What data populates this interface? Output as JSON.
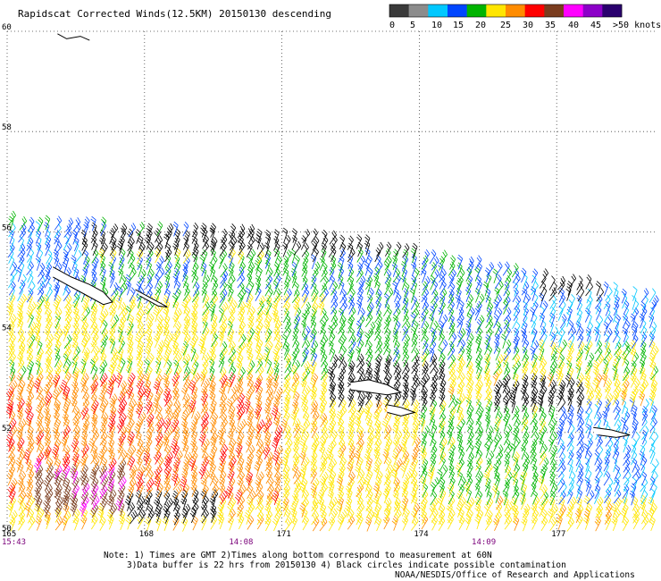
{
  "header": {
    "title": "Rapidscat Corrected Winds(12.5KM) 20150130 descending"
  },
  "legend": {
    "bins": [
      {
        "label": "0",
        "color": "#3a3a3a"
      },
      {
        "label": "5",
        "color": "#8c8c8c"
      },
      {
        "label": "10",
        "color": "#00c8ff"
      },
      {
        "label": "15",
        "color": "#0046ff"
      },
      {
        "label": "20",
        "color": "#00b400"
      },
      {
        "label": "25",
        "color": "#ffe600"
      },
      {
        "label": "30",
        "color": "#ff8c00"
      },
      {
        "label": "35",
        "color": "#ff0000"
      },
      {
        "label": "40",
        "color": "#7a3c1e"
      },
      {
        "label": "45",
        "color": "#ff00ff"
      },
      {
        "label": ">50 knots",
        "color": "#8c00c8"
      },
      {
        "label": "",
        "color": "#2a006e"
      }
    ]
  },
  "chart_data": {
    "type": "scatter",
    "title": "Rapidscat Corrected Winds(12.5KM) 20150130 descending",
    "xlabel": "",
    "ylabel": "",
    "x_ticks": [
      {
        "value": 165,
        "label": "165"
      },
      {
        "value": 168,
        "label": "168"
      },
      {
        "value": 171,
        "label": "171"
      },
      {
        "value": 174,
        "label": "174"
      },
      {
        "value": 177,
        "label": "177"
      }
    ],
    "y_ticks": [
      {
        "value": 60,
        "label": "60"
      },
      {
        "value": 58,
        "label": "58"
      },
      {
        "value": 56,
        "label": "56"
      },
      {
        "value": 54,
        "label": "54"
      },
      {
        "value": 52,
        "label": "52"
      },
      {
        "value": 50,
        "label": "50"
      }
    ],
    "xlim": [
      165,
      179.2
    ],
    "ylim": [
      50,
      60
    ],
    "x_gridlines": [
      168,
      171,
      174,
      177
    ],
    "y_gridlines": [
      58,
      56,
      54,
      52
    ],
    "grid": "dotted",
    "time_labels": [
      {
        "x": 165,
        "label": "15:43"
      },
      {
        "x": 170,
        "label": "14:08"
      },
      {
        "x": 175.3,
        "label": "14:09"
      }
    ],
    "swath": {
      "top_edge": [
        [
          165,
          56.15
        ],
        [
          172,
          55.8
        ],
        [
          179.2,
          54.6
        ]
      ],
      "bottom": 50
    },
    "wind_regions": [
      {
        "lon": [
          165,
          169
        ],
        "lat": [
          54.8,
          56.1
        ],
        "speed_kt": 20
      },
      {
        "lon": [
          165,
          166.5
        ],
        "lat": [
          53.8,
          56.0
        ],
        "speed_kt": 15
      },
      {
        "lon": [
          169,
          173
        ],
        "lat": [
          54.6,
          55.9
        ],
        "speed_kt": 22
      },
      {
        "lon": [
          165,
          172
        ],
        "lat": [
          53.2,
          54.5
        ],
        "speed_kt": 27
      },
      {
        "lon": [
          172,
          176.5
        ],
        "lat": [
          53.4,
          55.5
        ],
        "speed_kt": 20
      },
      {
        "lon": [
          176,
          179.2
        ],
        "lat": [
          53.6,
          54.9
        ],
        "speed_kt": 15
      },
      {
        "lon": [
          165,
          171
        ],
        "lat": [
          50.5,
          53.0
        ],
        "speed_kt": 33
      },
      {
        "lon": [
          171,
          174
        ],
        "lat": [
          50.5,
          52.5
        ],
        "speed_kt": 28
      },
      {
        "lon": [
          174,
          177.5
        ],
        "lat": [
          50.5,
          52.5
        ],
        "speed_kt": 23
      },
      {
        "lon": [
          177,
          179.2
        ],
        "lat": [
          50.5,
          52.5
        ],
        "speed_kt": 15
      },
      {
        "lon": [
          165.5,
          167.5
        ],
        "lat": [
          50.3,
          51.2
        ],
        "speed_kt": 44
      },
      {
        "lon": [
          171,
          174
        ],
        "lat": [
          53.3,
          54.3
        ],
        "speed_kt": 22
      },
      {
        "lon": [
          167,
          170.5
        ],
        "lat": [
          55.3,
          55.9
        ],
        "speed_kt": 26
      }
    ],
    "flagged_regions": [
      {
        "lon": [
          166.5,
          176
        ],
        "lat": [
          55.4,
          55.9
        ]
      },
      {
        "lon": [
          172,
          174.5
        ],
        "lat": [
          52.4,
          53.3
        ]
      },
      {
        "lon": [
          167.5,
          169.5
        ],
        "lat": [
          50.1,
          50.6
        ]
      },
      {
        "lon": [
          175.5,
          177.5
        ],
        "lat": [
          52.3,
          52.9
        ]
      },
      {
        "lon": [
          176.5,
          178
        ],
        "lat": [
          54.6,
          55.2
        ]
      }
    ],
    "coastlines": [
      {
        "name": "Bering Island",
        "points": [
          [
            166.0,
            55.3
          ],
          [
            166.4,
            55.1
          ],
          [
            166.8,
            54.95
          ],
          [
            167.1,
            54.8
          ],
          [
            167.3,
            54.6
          ],
          [
            167.1,
            54.55
          ],
          [
            166.7,
            54.75
          ],
          [
            166.3,
            54.95
          ],
          [
            166.0,
            55.1
          ]
        ]
      },
      {
        "name": "Medny Island",
        "points": [
          [
            167.8,
            54.85
          ],
          [
            168.1,
            54.7
          ],
          [
            168.4,
            54.55
          ],
          [
            168.5,
            54.5
          ],
          [
            168.3,
            54.52
          ],
          [
            167.9,
            54.72
          ]
        ]
      },
      {
        "name": "Attu Island",
        "points": [
          [
            172.5,
            53.0
          ],
          [
            172.9,
            53.05
          ],
          [
            173.3,
            52.95
          ],
          [
            173.6,
            52.8
          ],
          [
            173.3,
            52.75
          ],
          [
            172.9,
            52.8
          ],
          [
            172.5,
            52.85
          ]
        ]
      },
      {
        "name": "Agattu Island",
        "points": [
          [
            173.3,
            52.55
          ],
          [
            173.6,
            52.5
          ],
          [
            173.9,
            52.4
          ],
          [
            173.6,
            52.33
          ],
          [
            173.3,
            52.4
          ]
        ]
      },
      {
        "name": "Rat Islands",
        "points": [
          [
            177.8,
            52.1
          ],
          [
            178.2,
            52.05
          ],
          [
            178.6,
            51.95
          ],
          [
            178.3,
            51.9
          ],
          [
            177.9,
            51.95
          ]
        ]
      },
      {
        "name": "Kamchatka",
        "points": [
          [
            166.1,
            59.95
          ],
          [
            166.3,
            59.85
          ],
          [
            166.6,
            59.9
          ],
          [
            166.8,
            59.82
          ]
        ]
      }
    ]
  },
  "footer": {
    "note_line1": "Note: 1) Times are GMT 2)Times along bottom correspond to measurement at 60N",
    "note_line2": "3)Data buffer is 22 hrs from 20150130 4) Black circles indicate possible contamination",
    "credit": "NOAA/NESDIS/Office of Research and Applications"
  }
}
